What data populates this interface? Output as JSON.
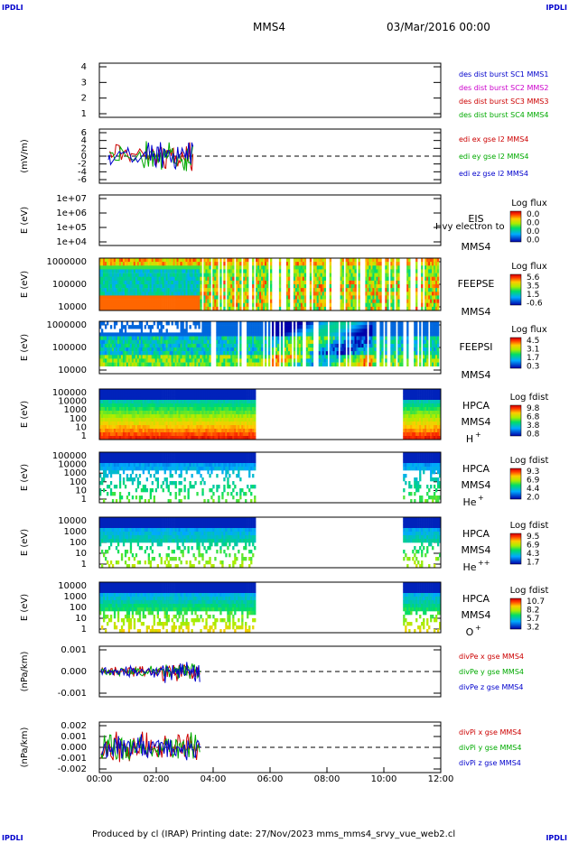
{
  "header": {
    "spacecraft": "MMS4",
    "datetime": "03/Mar/2016 00:00",
    "corner_label": "IPDLI"
  },
  "footer": {
    "text": "Produced by cl (IRAP)   Printing date: 27/Nov/2023   mms_mms4_srvy_vue_web2.cl"
  },
  "colors": {
    "red": "#cc0000",
    "magenta": "#cc00cc",
    "green": "#00aa00",
    "blue": "#0000cc"
  },
  "chart_data": [
    {
      "type": "line",
      "ylabel": "",
      "yticks": [
        "4",
        "3",
        "2",
        "1"
      ],
      "ylim": [
        1,
        4
      ],
      "legend": [
        {
          "text": "des dist burst SC1 MMS1",
          "color": "blue"
        },
        {
          "text": "des dist burst SC2 MMS2",
          "color": "magenta"
        },
        {
          "text": "des dist burst SC3 MMS3",
          "color": "red"
        },
        {
          "text": "des dist burst SC4 MMS4",
          "color": "green"
        }
      ]
    },
    {
      "type": "line",
      "ylabel": "(mV/m)",
      "yticks": [
        "6",
        "4",
        "2",
        "0",
        "-2",
        "-4",
        "-6"
      ],
      "ylim": [
        -6,
        6
      ],
      "legend": [
        {
          "text": "edi ex gse l2 MMS4",
          "color": "red"
        },
        {
          "text": "edi ey gse l2 MMS4",
          "color": "green"
        },
        {
          "text": "edi ez gse l2 MMS4",
          "color": "blue"
        }
      ]
    },
    {
      "type": "heatmap",
      "ylabel": "E (eV)",
      "yticks": [
        "1e+07",
        "1e+06",
        "1e+05",
        "1e+04"
      ],
      "labels": [
        "EIS",
        "MMS4"
      ],
      "overlay": "Hvy electron to",
      "colorbar": {
        "title": "Log flux",
        "ticks": [
          "0.0",
          "0.0",
          "0.0",
          "0.0"
        ]
      }
    },
    {
      "type": "heatmap",
      "ylabel": "E (eV)",
      "yticks": [
        "1000000",
        "100000",
        "10000"
      ],
      "labels": [
        "FEEPSE",
        "MMS4"
      ],
      "colorbar": {
        "title": "Log flux",
        "ticks": [
          "5.6",
          "3.5",
          "1.5",
          "-0.6"
        ]
      }
    },
    {
      "type": "heatmap",
      "ylabel": "E (eV)",
      "yticks": [
        "1000000",
        "100000",
        "10000"
      ],
      "labels": [
        "FEEPSI",
        "MMS4"
      ],
      "colorbar": {
        "title": "Log flux",
        "ticks": [
          "4.5",
          "3.1",
          "1.7",
          "0.3"
        ]
      }
    },
    {
      "type": "heatmap",
      "ylabel": "E (eV)",
      "yticks": [
        "100000",
        "10000",
        "1000",
        "100",
        "10",
        "1"
      ],
      "labels": [
        "HPCA",
        "MMS4",
        "H"
      ],
      "species_sup": "+",
      "colorbar": {
        "title": "Log fdist",
        "ticks": [
          "9.8",
          "6.8",
          "3.8",
          "0.8"
        ]
      }
    },
    {
      "type": "heatmap",
      "ylabel": "E (eV)",
      "yticks": [
        "100000",
        "10000",
        "1000",
        "100",
        "10",
        "1"
      ],
      "labels": [
        "HPCA",
        "MMS4",
        "He"
      ],
      "species_sup": "+",
      "colorbar": {
        "title": "Log fdist",
        "ticks": [
          "9.3",
          "6.9",
          "4.4",
          "2.0"
        ]
      }
    },
    {
      "type": "heatmap",
      "ylabel": "E (eV)",
      "yticks": [
        "10000",
        "1000",
        "100",
        "10",
        "1"
      ],
      "labels": [
        "HPCA",
        "MMS4",
        "He"
      ],
      "species_sup": "++",
      "colorbar": {
        "title": "Log fdist",
        "ticks": [
          "9.5",
          "6.9",
          "4.3",
          "1.7"
        ]
      }
    },
    {
      "type": "heatmap",
      "ylabel": "E (eV)",
      "yticks": [
        "10000",
        "1000",
        "100",
        "10",
        "1"
      ],
      "labels": [
        "HPCA",
        "MMS4",
        "O"
      ],
      "species_sup": "+",
      "colorbar": {
        "title": "Log fdist",
        "ticks": [
          "10.7",
          "8.2",
          "5.7",
          "3.2"
        ]
      }
    },
    {
      "type": "line",
      "ylabel": "(nPa/km)",
      "yticks": [
        "0.001",
        "0.000",
        "-0.001"
      ],
      "ylim": [
        -0.0015,
        0.0015
      ],
      "legend": [
        {
          "text": "divPe x gse MMS4",
          "color": "red"
        },
        {
          "text": "divPe y gse MMS4",
          "color": "green"
        },
        {
          "text": "divPe z gse MMS4",
          "color": "blue"
        }
      ]
    },
    {
      "type": "line",
      "ylabel": "(nPa/km)",
      "yticks": [
        "0.002",
        "0.001",
        "0.000",
        "-0.001",
        "-0.002"
      ],
      "ylim": [
        -0.0025,
        0.0025
      ],
      "legend": [
        {
          "text": "divPi x gse MMS4",
          "color": "red"
        },
        {
          "text": "divPi y gse MMS4",
          "color": "green"
        },
        {
          "text": "divPi z gse MMS4",
          "color": "blue"
        }
      ]
    }
  ],
  "xaxis": {
    "ticks": [
      "00:00",
      "02:00",
      "04:00",
      "06:00",
      "08:00",
      "10:00",
      "12:00"
    ],
    "range": [
      "00:00",
      "12:00"
    ]
  }
}
